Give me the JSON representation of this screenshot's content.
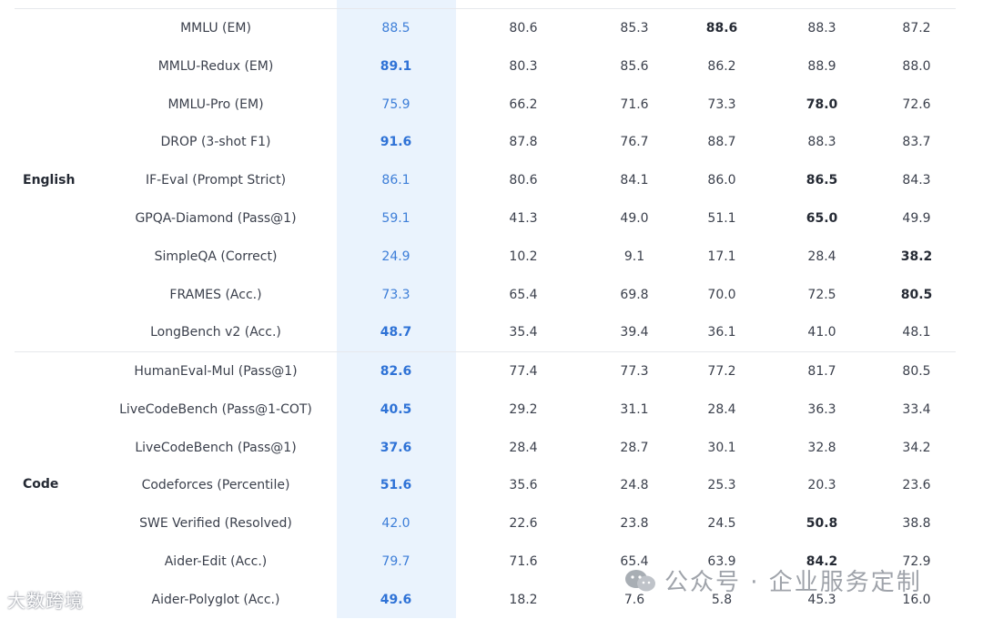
{
  "categories": {
    "english": "English",
    "code": "Code"
  },
  "rows": [
    {
      "benchmark": "MMLU (EM)",
      "values": [
        "88.5",
        "80.6",
        "85.3",
        "88.6",
        "88.3",
        "87.2"
      ],
      "bold": [
        false,
        false,
        false,
        true,
        false,
        false
      ]
    },
    {
      "benchmark": "MMLU-Redux (EM)",
      "values": [
        "89.1",
        "80.3",
        "85.6",
        "86.2",
        "88.9",
        "88.0"
      ],
      "bold": [
        true,
        false,
        false,
        false,
        false,
        false
      ]
    },
    {
      "benchmark": "MMLU-Pro (EM)",
      "values": [
        "75.9",
        "66.2",
        "71.6",
        "73.3",
        "78.0",
        "72.6"
      ],
      "bold": [
        false,
        false,
        false,
        false,
        true,
        false
      ]
    },
    {
      "benchmark": "DROP (3-shot F1)",
      "values": [
        "91.6",
        "87.8",
        "76.7",
        "88.7",
        "88.3",
        "83.7"
      ],
      "bold": [
        true,
        false,
        false,
        false,
        false,
        false
      ]
    },
    {
      "benchmark": "IF-Eval (Prompt Strict)",
      "values": [
        "86.1",
        "80.6",
        "84.1",
        "86.0",
        "86.5",
        "84.3"
      ],
      "bold": [
        false,
        false,
        false,
        false,
        true,
        false
      ]
    },
    {
      "benchmark": "GPQA-Diamond (Pass@1)",
      "values": [
        "59.1",
        "41.3",
        "49.0",
        "51.1",
        "65.0",
        "49.9"
      ],
      "bold": [
        false,
        false,
        false,
        false,
        true,
        false
      ]
    },
    {
      "benchmark": "SimpleQA (Correct)",
      "values": [
        "24.9",
        "10.2",
        "9.1",
        "17.1",
        "28.4",
        "38.2"
      ],
      "bold": [
        false,
        false,
        false,
        false,
        false,
        true
      ]
    },
    {
      "benchmark": "FRAMES (Acc.)",
      "values": [
        "73.3",
        "65.4",
        "69.8",
        "70.0",
        "72.5",
        "80.5"
      ],
      "bold": [
        false,
        false,
        false,
        false,
        false,
        true
      ]
    },
    {
      "benchmark": "LongBench v2 (Acc.)",
      "values": [
        "48.7",
        "35.4",
        "39.4",
        "36.1",
        "41.0",
        "48.1"
      ],
      "bold": [
        true,
        false,
        false,
        false,
        false,
        false
      ]
    },
    {
      "benchmark": "HumanEval-Mul (Pass@1)",
      "values": [
        "82.6",
        "77.4",
        "77.3",
        "77.2",
        "81.7",
        "80.5"
      ],
      "bold": [
        true,
        false,
        false,
        false,
        false,
        false
      ]
    },
    {
      "benchmark": "LiveCodeBench (Pass@1-COT)",
      "values": [
        "40.5",
        "29.2",
        "31.1",
        "28.4",
        "36.3",
        "33.4"
      ],
      "bold": [
        true,
        false,
        false,
        false,
        false,
        false
      ]
    },
    {
      "benchmark": "LiveCodeBench (Pass@1)",
      "values": [
        "37.6",
        "28.4",
        "28.7",
        "30.1",
        "32.8",
        "34.2"
      ],
      "bold": [
        true,
        false,
        false,
        false,
        false,
        false
      ]
    },
    {
      "benchmark": "Codeforces (Percentile)",
      "values": [
        "51.6",
        "35.6",
        "24.8",
        "25.3",
        "20.3",
        "23.6"
      ],
      "bold": [
        true,
        false,
        false,
        false,
        false,
        false
      ]
    },
    {
      "benchmark": "SWE Verified (Resolved)",
      "values": [
        "42.0",
        "22.6",
        "23.8",
        "24.5",
        "50.8",
        "38.8"
      ],
      "bold": [
        false,
        false,
        false,
        false,
        true,
        false
      ]
    },
    {
      "benchmark": "Aider-Edit (Acc.)",
      "values": [
        "79.7",
        "71.6",
        "65.4",
        "63.9",
        "84.2",
        "72.9"
      ],
      "bold": [
        false,
        false,
        false,
        false,
        true,
        false
      ]
    },
    {
      "benchmark": "Aider-Polyglot (Acc.)",
      "values": [
        "49.6",
        "18.2",
        "7.6",
        "5.8",
        "45.3",
        "16.0"
      ],
      "bold": [
        true,
        false,
        false,
        false,
        false,
        false
      ]
    }
  ],
  "watermarks": {
    "left_text": "大数跨境",
    "right_text": "公众号 · 企业服务定制"
  },
  "colors": {
    "highlight_column": "#eaf3fd",
    "highlight_text": "#3d7ed8",
    "body_text": "#3a3f4b"
  }
}
